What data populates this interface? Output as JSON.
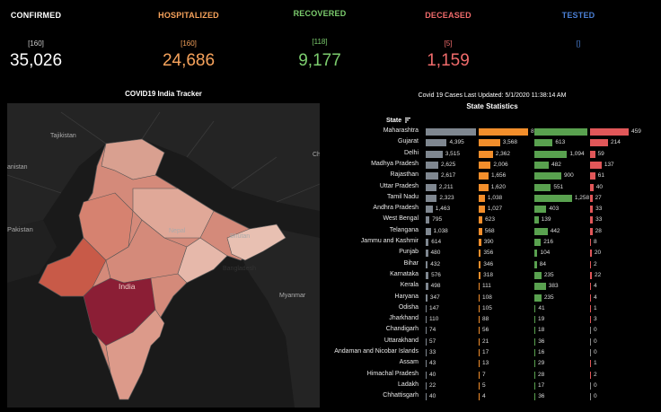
{
  "kpis": [
    {
      "label": "CONFIRMED",
      "delta": "[160]",
      "value": "35,026",
      "color": "#ffffff",
      "delta_color": "#cccccc"
    },
    {
      "label": "HOSPITALIZED",
      "delta": "[160]",
      "value": "24,686",
      "color": "#f7a35c",
      "delta_color": "#f7a35c"
    },
    {
      "label": "RECOVERED",
      "delta": "[118]",
      "value": "9,177",
      "color": "#7ccd6e",
      "delta_color": "#7ccd6e"
    },
    {
      "label": "DECEASED",
      "delta": "[5]",
      "value": "1,159",
      "color": "#f06b6b",
      "delta_color": "#f06b6b"
    },
    {
      "label": "TESTED",
      "delta": "[]",
      "value": "",
      "color": "#4a7fd4",
      "delta_color": "#4a7fd4"
    }
  ],
  "map": {
    "title": "COVID19 India Tracker",
    "labels": {
      "tajikistan": "Tajikistan",
      "afghanistan": "anistan",
      "pakistan": "Pakistan",
      "nepal": "Nepal",
      "bhutan": "Bhutan",
      "bangladesh": "Bangladesh",
      "india": "India",
      "myanmar": "Myanmar",
      "china": "Ch"
    }
  },
  "stats": {
    "updated": "Covid 19 Cases Last Updated: 5/1/2020 11:38:14 AM",
    "title": "State Statistics",
    "state_header": "State",
    "colors": {
      "confirmed": "#7f8790",
      "hospitalized": "#f28e2b",
      "recovered": "#59a14f",
      "deceased": "#e15759"
    },
    "max": {
      "confirmed": 10498,
      "hospitalized": 8266,
      "recovered": 1773,
      "deceased": 459
    },
    "rows": [
      {
        "state": "Maharashtra",
        "confirmed": 10498,
        "hospitalized": 8266,
        "recovered": 1773,
        "deceased": 459,
        "c_label": "10,498",
        "h_label": "8,266",
        "r_label": "1,773",
        "d_label": "459"
      },
      {
        "state": "Gujarat",
        "confirmed": 4395,
        "hospitalized": 3568,
        "recovered": 613,
        "deceased": 214,
        "c_label": "4,395",
        "h_label": "3,568",
        "r_label": "613",
        "d_label": "214"
      },
      {
        "state": "Delhi",
        "confirmed": 3515,
        "hospitalized": 2362,
        "recovered": 1094,
        "deceased": 59,
        "c_label": "3,515",
        "h_label": "2,362",
        "r_label": "1,094",
        "d_label": "59"
      },
      {
        "state": "Madhya Pradesh",
        "confirmed": 2625,
        "hospitalized": 2006,
        "recovered": 482,
        "deceased": 137,
        "c_label": "2,625",
        "h_label": "2,006",
        "r_label": "482",
        "d_label": "137"
      },
      {
        "state": "Rajasthan",
        "confirmed": 2617,
        "hospitalized": 1656,
        "recovered": 900,
        "deceased": 61,
        "c_label": "2,617",
        "h_label": "1,656",
        "r_label": "900",
        "d_label": "61"
      },
      {
        "state": "Uttar Pradesh",
        "confirmed": 2211,
        "hospitalized": 1620,
        "recovered": 551,
        "deceased": 40,
        "c_label": "2,211",
        "h_label": "1,620",
        "r_label": "551",
        "d_label": "40"
      },
      {
        "state": "Tamil Nadu",
        "confirmed": 2323,
        "hospitalized": 1038,
        "recovered": 1258,
        "deceased": 27,
        "c_label": "2,323",
        "h_label": "1,038",
        "r_label": "1,258",
        "d_label": "27"
      },
      {
        "state": "Andhra Pradesh",
        "confirmed": 1463,
        "hospitalized": 1027,
        "recovered": 403,
        "deceased": 33,
        "c_label": "1,463",
        "h_label": "1,027",
        "r_label": "403",
        "d_label": "33"
      },
      {
        "state": "West Bengal",
        "confirmed": 795,
        "hospitalized": 623,
        "recovered": 139,
        "deceased": 33,
        "c_label": "795",
        "h_label": "623",
        "r_label": "139",
        "d_label": "33"
      },
      {
        "state": "Telangana",
        "confirmed": 1038,
        "hospitalized": 568,
        "recovered": 442,
        "deceased": 28,
        "c_label": "1,038",
        "h_label": "568",
        "r_label": "442",
        "d_label": "28"
      },
      {
        "state": "Jammu and Kashmir",
        "confirmed": 614,
        "hospitalized": 390,
        "recovered": 216,
        "deceased": 8,
        "c_label": "614",
        "h_label": "390",
        "r_label": "216",
        "d_label": "8"
      },
      {
        "state": "Punjab",
        "confirmed": 480,
        "hospitalized": 356,
        "recovered": 104,
        "deceased": 20,
        "c_label": "480",
        "h_label": "356",
        "r_label": "104",
        "d_label": "20"
      },
      {
        "state": "Bihar",
        "confirmed": 432,
        "hospitalized": 346,
        "recovered": 84,
        "deceased": 2,
        "c_label": "432",
        "h_label": "346",
        "r_label": "84",
        "d_label": "2"
      },
      {
        "state": "Karnataka",
        "confirmed": 576,
        "hospitalized": 318,
        "recovered": 235,
        "deceased": 22,
        "c_label": "576",
        "h_label": "318",
        "r_label": "235",
        "d_label": "22"
      },
      {
        "state": "Kerala",
        "confirmed": 498,
        "hospitalized": 111,
        "recovered": 383,
        "deceased": 4,
        "c_label": "498",
        "h_label": "111",
        "r_label": "383",
        "d_label": "4"
      },
      {
        "state": "Haryana",
        "confirmed": 347,
        "hospitalized": 108,
        "recovered": 235,
        "deceased": 4,
        "c_label": "347",
        "h_label": "108",
        "r_label": "235",
        "d_label": "4"
      },
      {
        "state": "Odisha",
        "confirmed": 147,
        "hospitalized": 105,
        "recovered": 41,
        "deceased": 1,
        "c_label": "147",
        "h_label": "105",
        "r_label": "41",
        "d_label": "1"
      },
      {
        "state": "Jharkhand",
        "confirmed": 110,
        "hospitalized": 88,
        "recovered": 19,
        "deceased": 3,
        "c_label": "110",
        "h_label": "88",
        "r_label": "19",
        "d_label": "3"
      },
      {
        "state": "Chandigarh",
        "confirmed": 74,
        "hospitalized": 56,
        "recovered": 18,
        "deceased": 0,
        "c_label": "74",
        "h_label": "56",
        "r_label": "18",
        "d_label": "0"
      },
      {
        "state": "Uttarakhand",
        "confirmed": 57,
        "hospitalized": 21,
        "recovered": 36,
        "deceased": 0,
        "c_label": "57",
        "h_label": "21",
        "r_label": "36",
        "d_label": "0"
      },
      {
        "state": "Andaman and Nicobar Islands",
        "confirmed": 33,
        "hospitalized": 17,
        "recovered": 16,
        "deceased": 0,
        "c_label": "33",
        "h_label": "17",
        "r_label": "16",
        "d_label": "0"
      },
      {
        "state": "Assam",
        "confirmed": 43,
        "hospitalized": 13,
        "recovered": 29,
        "deceased": 1,
        "c_label": "43",
        "h_label": "13",
        "r_label": "29",
        "d_label": "1"
      },
      {
        "state": "Himachal Pradesh",
        "confirmed": 40,
        "hospitalized": 7,
        "recovered": 28,
        "deceased": 2,
        "c_label": "40",
        "h_label": "7",
        "r_label": "28",
        "d_label": "2"
      },
      {
        "state": "Ladakh",
        "confirmed": 22,
        "hospitalized": 5,
        "recovered": 17,
        "deceased": 0,
        "c_label": "22",
        "h_label": "5",
        "r_label": "17",
        "d_label": "0"
      },
      {
        "state": "Chhattisgarh",
        "confirmed": 40,
        "hospitalized": 4,
        "recovered": 36,
        "deceased": 0,
        "c_label": "40",
        "h_label": "4",
        "r_label": "36",
        "d_label": "0"
      }
    ]
  }
}
